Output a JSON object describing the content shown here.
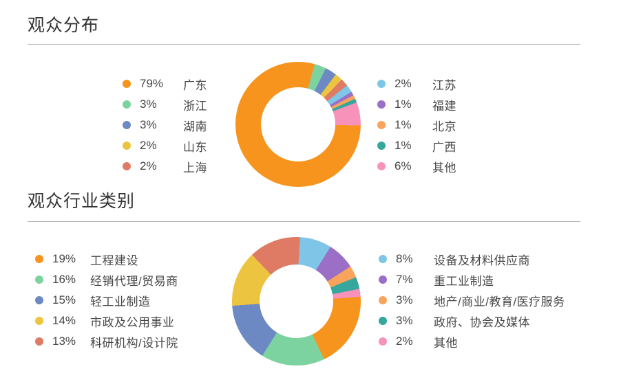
{
  "sections": [
    {
      "title": "观众分布",
      "legend_left": [
        {
          "percent": "79%",
          "label": "广东",
          "color": "#F7941D"
        },
        {
          "percent": "3%",
          "label": "浙江",
          "color": "#7DD3A0"
        },
        {
          "percent": "3%",
          "label": "湖南",
          "color": "#6C89C4"
        },
        {
          "percent": "2%",
          "label": "山东",
          "color": "#ECC440"
        },
        {
          "percent": "2%",
          "label": "上海",
          "color": "#DF7B64"
        }
      ],
      "legend_right": [
        {
          "percent": "2%",
          "label": "江苏",
          "color": "#7EC5E8"
        },
        {
          "percent": "1%",
          "label": "福建",
          "color": "#9B6FC5"
        },
        {
          "percent": "1%",
          "label": "北京",
          "color": "#F9A45C"
        },
        {
          "percent": "1%",
          "label": "广西",
          "color": "#35A79D"
        },
        {
          "percent": "6%",
          "label": "其他",
          "color": "#F792BB"
        }
      ]
    },
    {
      "title": "观众行业类别",
      "legend_left": [
        {
          "percent": "19%",
          "label": "工程建设",
          "color": "#F7941D"
        },
        {
          "percent": "16%",
          "label": "经销代理/贸易商",
          "color": "#7DD3A0"
        },
        {
          "percent": "15%",
          "label": "轻工业制造",
          "color": "#6C89C4"
        },
        {
          "percent": "14%",
          "label": "市政及公用事业",
          "color": "#ECC440"
        },
        {
          "percent": "13%",
          "label": "科研机构/设计院",
          "color": "#DF7B64"
        }
      ],
      "legend_right": [
        {
          "percent": "8%",
          "label": "设备及材料供应商",
          "color": "#7EC5E8"
        },
        {
          "percent": "7%",
          "label": "重工业制造",
          "color": "#9B6FC5"
        },
        {
          "percent": "3%",
          "label": "地产/商业/教育/医疗服务",
          "color": "#F9A45C"
        },
        {
          "percent": "3%",
          "label": "政府、协会及媒体",
          "color": "#35A79D"
        },
        {
          "percent": "2%",
          "label": "其他",
          "color": "#F792BB"
        }
      ]
    }
  ],
  "chart_data": [
    {
      "type": "pie",
      "subtype": "donut",
      "title": "观众分布",
      "unit": "%",
      "start_angle_deg": 91,
      "legend_position": "left-right",
      "categories": [
        "广东",
        "浙江",
        "湖南",
        "山东",
        "上海",
        "江苏",
        "福建",
        "北京",
        "广西",
        "其他"
      ],
      "values": [
        79,
        3,
        3,
        2,
        2,
        2,
        1,
        1,
        1,
        6
      ],
      "colors": [
        "#F7941D",
        "#7DD3A0",
        "#6C89C4",
        "#ECC440",
        "#DF7B64",
        "#7EC5E8",
        "#9B6FC5",
        "#F9A45C",
        "#35A79D",
        "#F792BB"
      ]
    },
    {
      "type": "pie",
      "subtype": "donut",
      "title": "观众行业类别",
      "unit": "%",
      "start_angle_deg": 86,
      "legend_position": "left-right",
      "categories": [
        "工程建设",
        "经销代理/贸易商",
        "轻工业制造",
        "市政及公用事业",
        "科研机构/设计院",
        "设备及材料供应商",
        "重工业制造",
        "地产/商业/教育/医疗服务",
        "政府、协会及媒体",
        "其他"
      ],
      "values": [
        19,
        16,
        15,
        14,
        13,
        8,
        7,
        3,
        3,
        2
      ],
      "colors": [
        "#F7941D",
        "#7DD3A0",
        "#6C89C4",
        "#ECC440",
        "#DF7B64",
        "#7EC5E8",
        "#9B6FC5",
        "#F9A45C",
        "#35A79D",
        "#F792BB"
      ]
    }
  ]
}
